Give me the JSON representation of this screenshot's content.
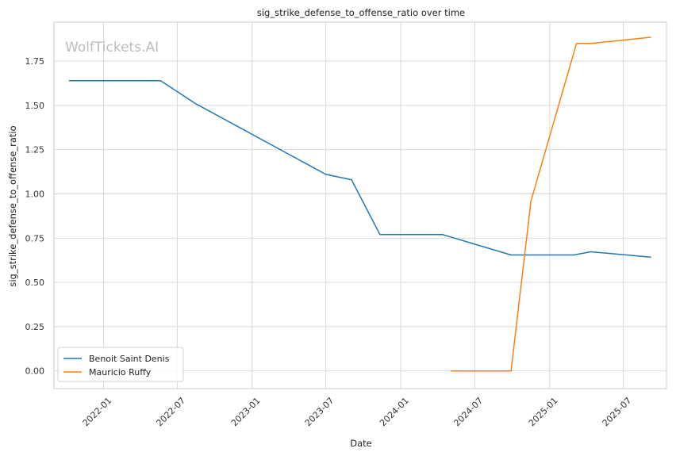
{
  "chart_data": {
    "type": "line",
    "title": "sig_strike_defense_to_offense_ratio over time",
    "xlabel": "Date",
    "ylabel": "sig_strike_defense_to_offense_ratio",
    "watermark": "WolfTickets.AI",
    "xlim": [
      "2021-09-01",
      "2025-10-15"
    ],
    "ylim": [
      -0.1,
      1.97
    ],
    "x_ticks": [
      "2022-01",
      "2022-07",
      "2023-01",
      "2023-07",
      "2024-01",
      "2024-07",
      "2025-01",
      "2025-07"
    ],
    "y_ticks": [
      "0.00",
      "0.25",
      "0.50",
      "0.75",
      "1.00",
      "1.25",
      "1.50",
      "1.75"
    ],
    "grid": true,
    "legend_position": "lower-left",
    "series": [
      {
        "name": "Benoit Saint Denis",
        "color": "#1f77b4",
        "points": [
          {
            "x": "2021-10-09",
            "y": 1.64
          },
          {
            "x": "2022-05-21",
            "y": 1.64
          },
          {
            "x": "2022-08-15",
            "y": 1.51
          },
          {
            "x": "2023-07-01",
            "y": 1.11
          },
          {
            "x": "2023-09-02",
            "y": 1.08
          },
          {
            "x": "2023-11-11",
            "y": 0.77
          },
          {
            "x": "2024-04-13",
            "y": 0.77
          },
          {
            "x": "2024-09-28",
            "y": 0.655
          },
          {
            "x": "2025-03-01",
            "y": 0.655
          },
          {
            "x": "2025-04-12",
            "y": 0.673
          },
          {
            "x": "2025-09-06",
            "y": 0.643
          }
        ]
      },
      {
        "name": "Mauricio Ruffy",
        "color": "#ff7f0e",
        "points": [
          {
            "x": "2024-05-04",
            "y": 0.0
          },
          {
            "x": "2024-09-28",
            "y": 0.0
          },
          {
            "x": "2024-11-16",
            "y": 0.96
          },
          {
            "x": "2025-03-08",
            "y": 1.85
          },
          {
            "x": "2025-04-12",
            "y": 1.85
          },
          {
            "x": "2025-09-06",
            "y": 1.885
          }
        ]
      }
    ]
  }
}
